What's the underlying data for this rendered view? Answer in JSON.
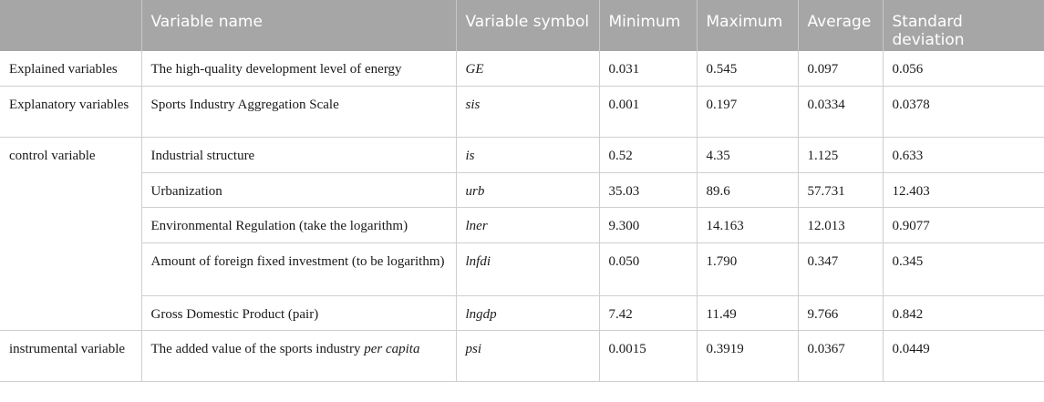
{
  "header": {
    "col0": "",
    "col1": "Variable name",
    "col2": "Variable symbol",
    "col3": "Minimum",
    "col4": "Maximum",
    "col5": "Average",
    "col6": "Standard deviation"
  },
  "groups": {
    "explained": "Explained variables",
    "explanatory": "Explanatory variables",
    "control": "control variable",
    "instrumental": "instrumental variable"
  },
  "rows": [
    {
      "name": "The high-quality development level of energy",
      "symbol": "GE",
      "min": "0.031",
      "max": "0.545",
      "avg": "0.097",
      "sd": "0.056"
    },
    {
      "name": "Sports Industry Aggregation Scale",
      "symbol": "sis",
      "min": "0.001",
      "max": "0.197",
      "avg": "0.0334",
      "sd": "0.0378"
    },
    {
      "name": "Industrial structure",
      "symbol": "is",
      "min": "0.52",
      "max": "4.35",
      "avg": "1.125",
      "sd": "0.633"
    },
    {
      "name": "Urbanization",
      "symbol": "urb",
      "min": "35.03",
      "max": "89.6",
      "avg": "57.731",
      "sd": "12.403"
    },
    {
      "name": "Environmental Regulation (take the logarithm)",
      "symbol": "lner",
      "min": "9.300",
      "max": "14.163",
      "avg": "12.013",
      "sd": "0.9077"
    },
    {
      "name": "Amount of foreign fixed investment (to be logarithm)",
      "symbol": "lnfdi",
      "min": "0.050",
      "max": "1.790",
      "avg": "0.347",
      "sd": "0.345"
    },
    {
      "name": "Gross Domestic Product (pair)",
      "symbol": "lngdp",
      "min": "7.42",
      "max": "11.49",
      "avg": "9.766",
      "sd": "0.842"
    },
    {
      "name_prefix": "The added value of the sports industry ",
      "name_italic": "per capita",
      "symbol": "psi",
      "min": "0.0015",
      "max": "0.3919",
      "avg": "0.0367",
      "sd": "0.0449"
    }
  ]
}
